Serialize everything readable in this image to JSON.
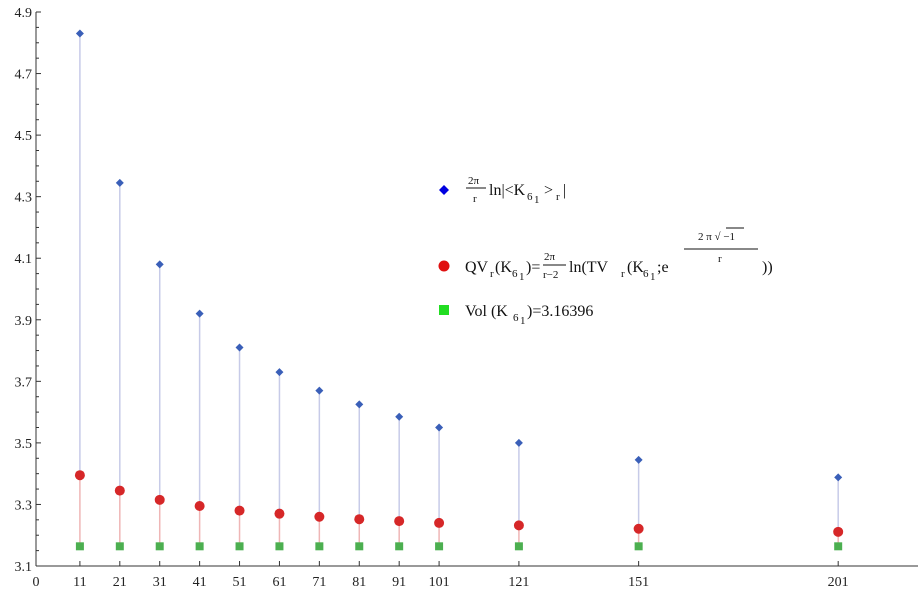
{
  "chart_data": {
    "type": "scatter",
    "x": [
      11,
      21,
      31,
      41,
      51,
      61,
      71,
      81,
      91,
      101,
      121,
      151,
      201
    ],
    "x_ticks": [
      0,
      11,
      21,
      31,
      41,
      51,
      61,
      71,
      81,
      91,
      101,
      121,
      151,
      201
    ],
    "y_ticks": [
      "3.1",
      "3.3",
      "3.5",
      "3.7",
      "3.9",
      "4.1",
      "4.3",
      "4.5",
      "4.7",
      "4.9"
    ],
    "xlim": [
      0,
      221
    ],
    "ylim": [
      3.1,
      4.9
    ],
    "grid": false,
    "legend_position": "center-right",
    "series": [
      {
        "name": "2π/r ln|<K61>r|",
        "marker": "diamond",
        "color": "#3a5fb8",
        "values": [
          4.83,
          4.345,
          4.08,
          3.92,
          3.81,
          3.73,
          3.67,
          3.625,
          3.585,
          3.55,
          3.5,
          3.445,
          3.388
        ]
      },
      {
        "name": "QVr(K61)=2π/(r−2) ln(TVr(K61; e^(2π√−1/r)))",
        "marker": "circle",
        "color": "#d62728",
        "values": [
          3.395,
          3.345,
          3.315,
          3.295,
          3.28,
          3.27,
          3.26,
          3.252,
          3.246,
          3.24,
          3.232,
          3.221,
          3.211
        ]
      },
      {
        "name": "Vol(K61)=3.16396",
        "marker": "square",
        "color": "#4caf50",
        "values": [
          3.16396,
          3.16396,
          3.16396,
          3.16396,
          3.16396,
          3.16396,
          3.16396,
          3.16396,
          3.16396,
          3.16396,
          3.16396,
          3.16396,
          3.16396
        ]
      }
    ],
    "legend": {
      "s1_frac_num": "2π",
      "s1_frac_den": "r",
      "s1_text_a": "ln|<K",
      "s1_sub": "6",
      "s1_subsub": "1",
      "s1_text_b": ">",
      "s1_sub_r": "r",
      "s1_text_c": "|",
      "s2_text_a": "QV",
      "s2_sub_r": "r",
      "s2_text_b": "(K",
      "s2_sub": "6",
      "s2_subsub": "1",
      "s2_text_c": ")=",
      "s2_frac_num": "2π",
      "s2_frac_den": "r−2",
      "s2_text_d": "ln(TV",
      "s2_sub_r2": "r",
      "s2_text_e": "(K",
      "s2_sub2": "6",
      "s2_subsub2": "1",
      "s2_text_f": ";e",
      "s2_exp_num": "2 π √ −1",
      "s2_exp_den": "r",
      "s2_text_g": "))",
      "s3_text_a": "Vol (K",
      "s3_sub": "6",
      "s3_subsub": "1",
      "s3_text_b": ")=3.16396"
    }
  }
}
